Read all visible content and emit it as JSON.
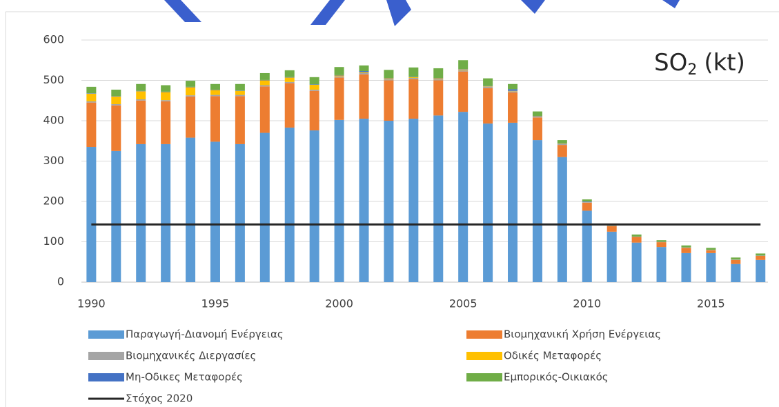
{
  "chart_data": {
    "type": "bar",
    "stacked": true,
    "title_parts": [
      "SO",
      "2",
      "(kt)"
    ],
    "x": [
      1990,
      1991,
      1992,
      1993,
      1994,
      1995,
      1996,
      1997,
      1998,
      1999,
      2000,
      2001,
      2002,
      2003,
      2004,
      2005,
      2006,
      2007,
      2008,
      2009,
      2010,
      2011,
      2012,
      2013,
      2014,
      2015,
      2016,
      2017
    ],
    "xlim": [
      1989.6,
      2017.3
    ],
    "xticks": [
      1990,
      1995,
      2000,
      2005,
      2010,
      2015
    ],
    "ylim": [
      0,
      600
    ],
    "yticks": [
      0,
      100,
      200,
      300,
      400,
      500,
      600
    ],
    "grid": true,
    "series": [
      {
        "name": "Παραγωγή-Διανομή Ενέργειας",
        "color": "#5b9bd5",
        "values": [
          335,
          325,
          342,
          342,
          358,
          348,
          342,
          370,
          383,
          376,
          402,
          405,
          400,
          405,
          413,
          422,
          393,
          395,
          352,
          310,
          177,
          125,
          98,
          87,
          72,
          72,
          45,
          55
        ]
      },
      {
        "name": "Βιομηχανική Χρήση Ενέργειας",
        "color": "#ed7d31",
        "values": [
          110,
          113,
          108,
          106,
          102,
          113,
          119,
          115,
          110,
          98,
          105,
          110,
          100,
          98,
          87,
          100,
          88,
          75,
          56,
          30,
          20,
          14,
          14,
          12,
          13,
          7,
          10,
          10
        ]
      },
      {
        "name": "Βιομηχανικές Διεργασίες",
        "color": "#a5a5a5",
        "values": [
          3,
          3,
          3,
          3,
          3,
          3,
          3,
          3,
          3,
          3,
          3,
          3,
          3,
          3,
          3,
          3,
          3,
          3,
          2,
          2,
          2,
          1,
          1,
          1,
          1,
          1,
          1,
          1
        ]
      },
      {
        "name": "Οδικές Μεταφορές",
        "color": "#ffc000",
        "values": [
          19,
          19,
          20,
          20,
          20,
          12,
          10,
          12,
          11,
          12,
          2,
          2,
          2,
          2,
          2,
          2,
          1,
          1,
          1,
          1,
          0,
          0,
          0,
          0,
          0,
          0,
          0,
          0
        ]
      },
      {
        "name": "Μη-Οδικες Μεταφορές",
        "color": "#4472c4",
        "values": [
          1,
          1,
          1,
          1,
          1,
          1,
          1,
          1,
          1,
          1,
          1,
          3,
          1,
          1,
          1,
          1,
          1,
          4,
          1,
          1,
          1,
          0,
          0,
          0,
          0,
          0,
          0,
          0
        ]
      },
      {
        "name": "Εμπορικός-Οικιακός",
        "color": "#70ad47",
        "values": [
          16,
          16,
          17,
          16,
          15,
          14,
          16,
          17,
          17,
          18,
          20,
          14,
          20,
          23,
          24,
          22,
          19,
          13,
          11,
          8,
          5,
          3,
          5,
          4,
          5,
          5,
          5,
          5
        ]
      }
    ],
    "target": {
      "name": "Στόχος 2020",
      "color": "#262626",
      "value": 143
    }
  }
}
